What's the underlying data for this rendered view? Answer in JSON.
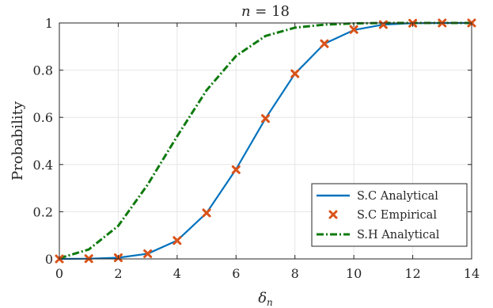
{
  "chart_data": {
    "type": "line",
    "title": "n = 18",
    "xlabel": "δ_n",
    "ylabel": "Probability",
    "xlim": [
      0,
      14
    ],
    "ylim": [
      0,
      1
    ],
    "xticks": [
      0,
      2,
      4,
      6,
      8,
      10,
      12,
      14
    ],
    "yticks": [
      0,
      0.2,
      0.4,
      0.6,
      0.8,
      1
    ],
    "xtick_labels": [
      "0",
      "2",
      "4",
      "6",
      "8",
      "10",
      "12",
      "14"
    ],
    "ytick_labels": [
      "0",
      "0.2",
      "0.4",
      "0.6",
      "0.8",
      "1"
    ],
    "grid": true,
    "legend_position": "bottom-right",
    "x": [
      0,
      1,
      2,
      3,
      4,
      5,
      6,
      7,
      8,
      9,
      10,
      11,
      12,
      13,
      14
    ],
    "series": [
      {
        "name": "S.C Analytical",
        "style": "solid-line",
        "color": "#0072BD",
        "values": [
          0,
          0.001,
          0.005,
          0.022,
          0.078,
          0.195,
          0.38,
          0.595,
          0.785,
          0.912,
          0.97,
          0.993,
          0.999,
          1,
          1
        ]
      },
      {
        "name": "S.C Empirical",
        "style": "x-markers",
        "color": "#D95319",
        "values": [
          0,
          0.001,
          0.005,
          0.022,
          0.078,
          0.195,
          0.378,
          0.595,
          0.785,
          0.912,
          0.972,
          0.993,
          0.999,
          1,
          1
        ]
      },
      {
        "name": "S.H Analytical",
        "style": "dash-dot-line",
        "color": "#0E7A0E",
        "values": [
          0.003,
          0.04,
          0.14,
          0.315,
          0.52,
          0.715,
          0.86,
          0.945,
          0.98,
          0.993,
          0.998,
          1,
          1,
          1,
          1
        ]
      }
    ]
  }
}
